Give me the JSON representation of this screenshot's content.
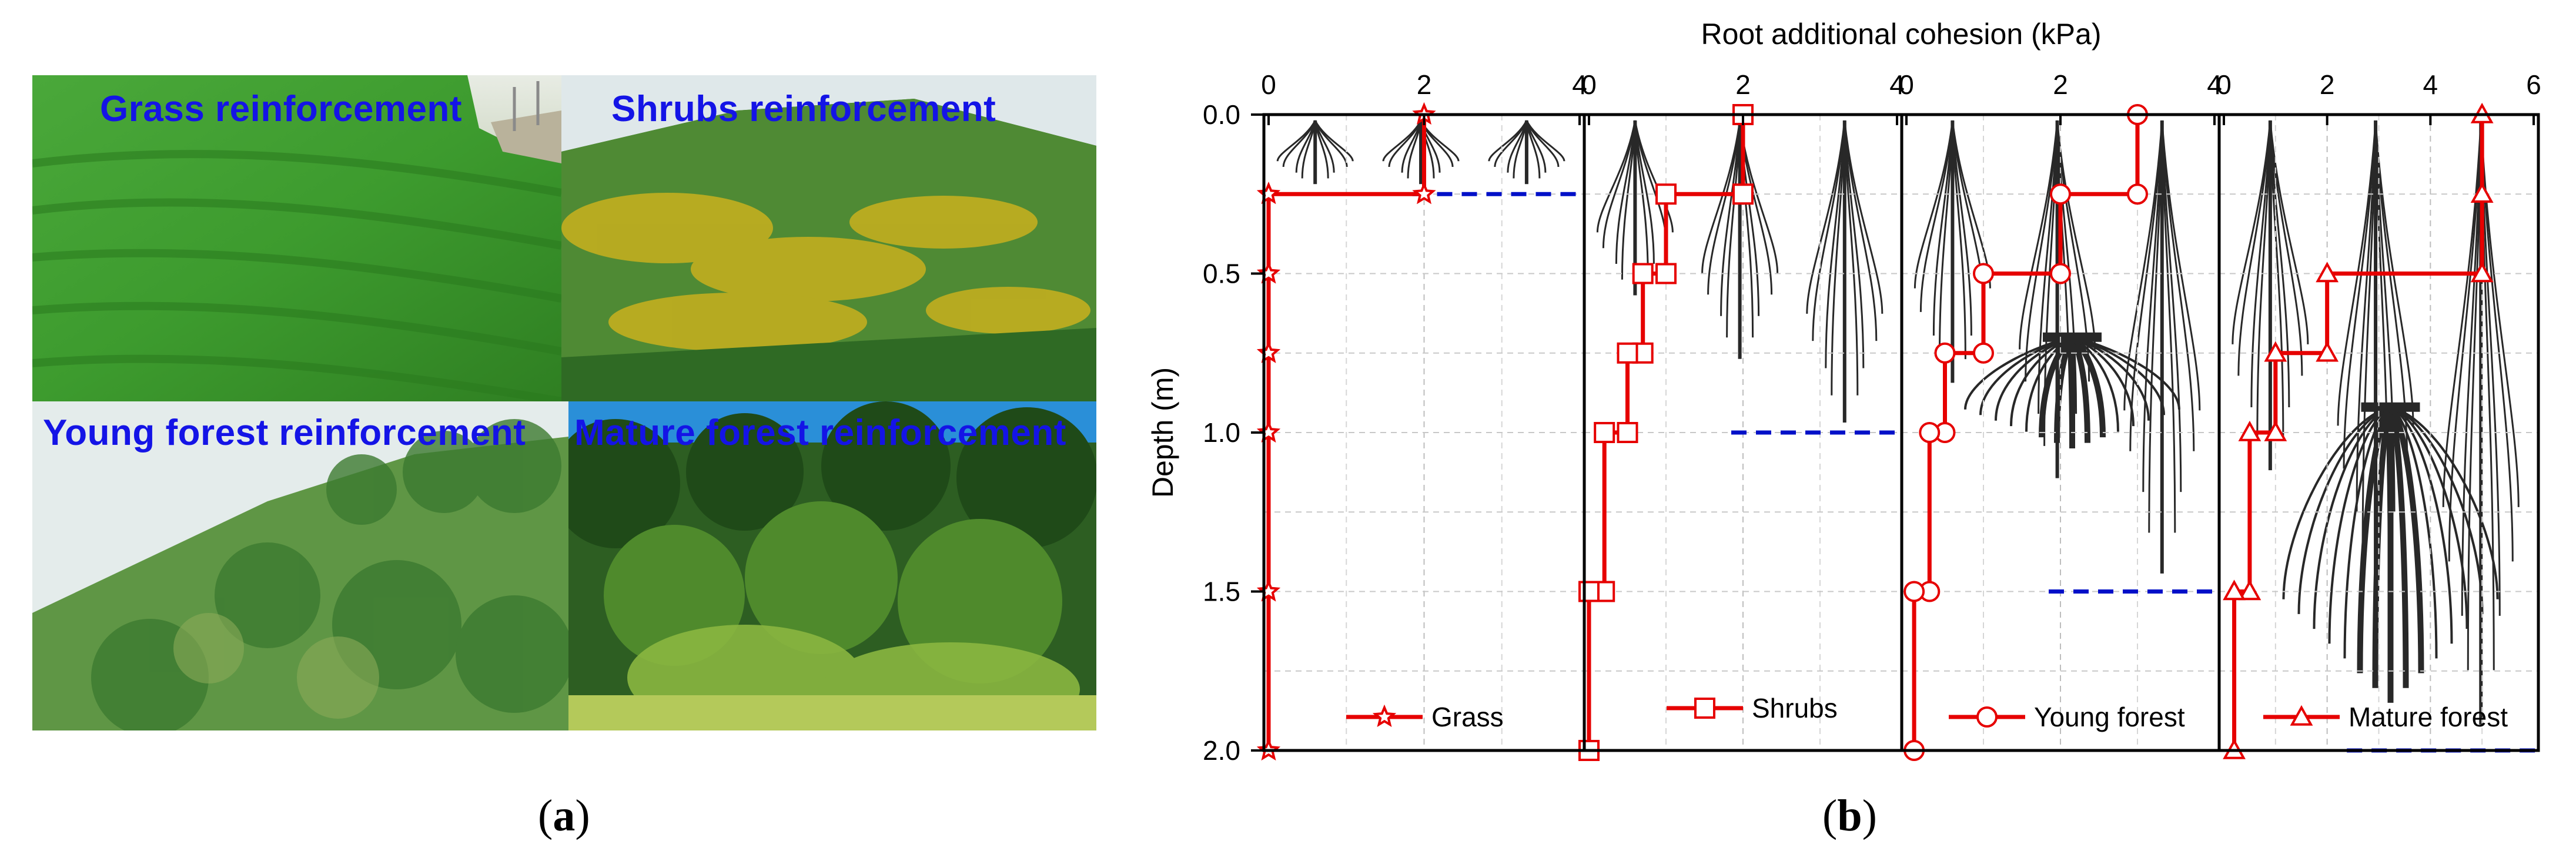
{
  "photos": [
    {
      "label": "Grass reinforcement"
    },
    {
      "label": "Shrubs reinforcement"
    },
    {
      "label": "Young forest reinforcement"
    },
    {
      "label": "Mature forest reinforcement"
    }
  ],
  "captions": {
    "a": "a",
    "b": "b"
  },
  "colors": {
    "series": "#e60000",
    "root_depth": "#0010c8",
    "photo_label": "#1414e6",
    "root_drawing": "#111111"
  },
  "chart_data": {
    "type": "line",
    "title": "Root additional cohesion (kPa)",
    "ylabel": "Depth (m)",
    "ylim": [
      0.0,
      2.0
    ],
    "y_ticks": [
      "0.0",
      "0.5",
      "1.0",
      "1.5",
      "2.0"
    ],
    "grid": true,
    "panels": [
      {
        "name": "Grass",
        "marker": "star",
        "xlim": [
          0,
          4
        ],
        "x_ticks": [
          "0",
          "2",
          "4"
        ],
        "points": [
          [
            2,
            0.0
          ],
          [
            2,
            0.25
          ],
          [
            0,
            0.25
          ],
          [
            0,
            0.5
          ],
          [
            0,
            0.75
          ],
          [
            0,
            1.0
          ],
          [
            0,
            1.5
          ],
          [
            0,
            2.0
          ]
        ],
        "root_depth": 0.25
      },
      {
        "name": "Shrubs",
        "marker": "square",
        "xlim": [
          0,
          4
        ],
        "x_ticks": [
          "0",
          "2",
          "4"
        ],
        "points": [
          [
            2,
            0.0
          ],
          [
            2,
            0.25
          ],
          [
            1,
            0.25
          ],
          [
            1,
            0.5
          ],
          [
            0.7,
            0.5
          ],
          [
            0.7,
            0.75
          ],
          [
            0.5,
            0.75
          ],
          [
            0.5,
            1.0
          ],
          [
            0.2,
            1.0
          ],
          [
            0.2,
            1.5
          ],
          [
            0,
            1.5
          ],
          [
            0,
            2.0
          ]
        ],
        "root_depth": 1.0
      },
      {
        "name": "Young forest",
        "marker": "circle",
        "xlim": [
          0,
          4
        ],
        "x_ticks": [
          "0",
          "2",
          "4"
        ],
        "points": [
          [
            3,
            0.0
          ],
          [
            3,
            0.25
          ],
          [
            2,
            0.25
          ],
          [
            2,
            0.5
          ],
          [
            1,
            0.5
          ],
          [
            1,
            0.75
          ],
          [
            0.5,
            0.75
          ],
          [
            0.5,
            1.0
          ],
          [
            0.3,
            1.0
          ],
          [
            0.3,
            1.5
          ],
          [
            0.1,
            1.5
          ],
          [
            0.1,
            2.0
          ]
        ],
        "root_depth": 1.5
      },
      {
        "name": "Mature forest",
        "marker": "triangle",
        "xlim": [
          0,
          6
        ],
        "x_ticks": [
          "0",
          "2",
          "4",
          "6"
        ],
        "points": [
          [
            5,
            0.0
          ],
          [
            5,
            0.25
          ],
          [
            5,
            0.5
          ],
          [
            2,
            0.5
          ],
          [
            2,
            0.75
          ],
          [
            1,
            0.75
          ],
          [
            1,
            1.0
          ],
          [
            0.5,
            1.0
          ],
          [
            0.5,
            1.5
          ],
          [
            0.2,
            1.5
          ],
          [
            0.2,
            2.0
          ]
        ],
        "root_depth": 2.0
      }
    ]
  }
}
